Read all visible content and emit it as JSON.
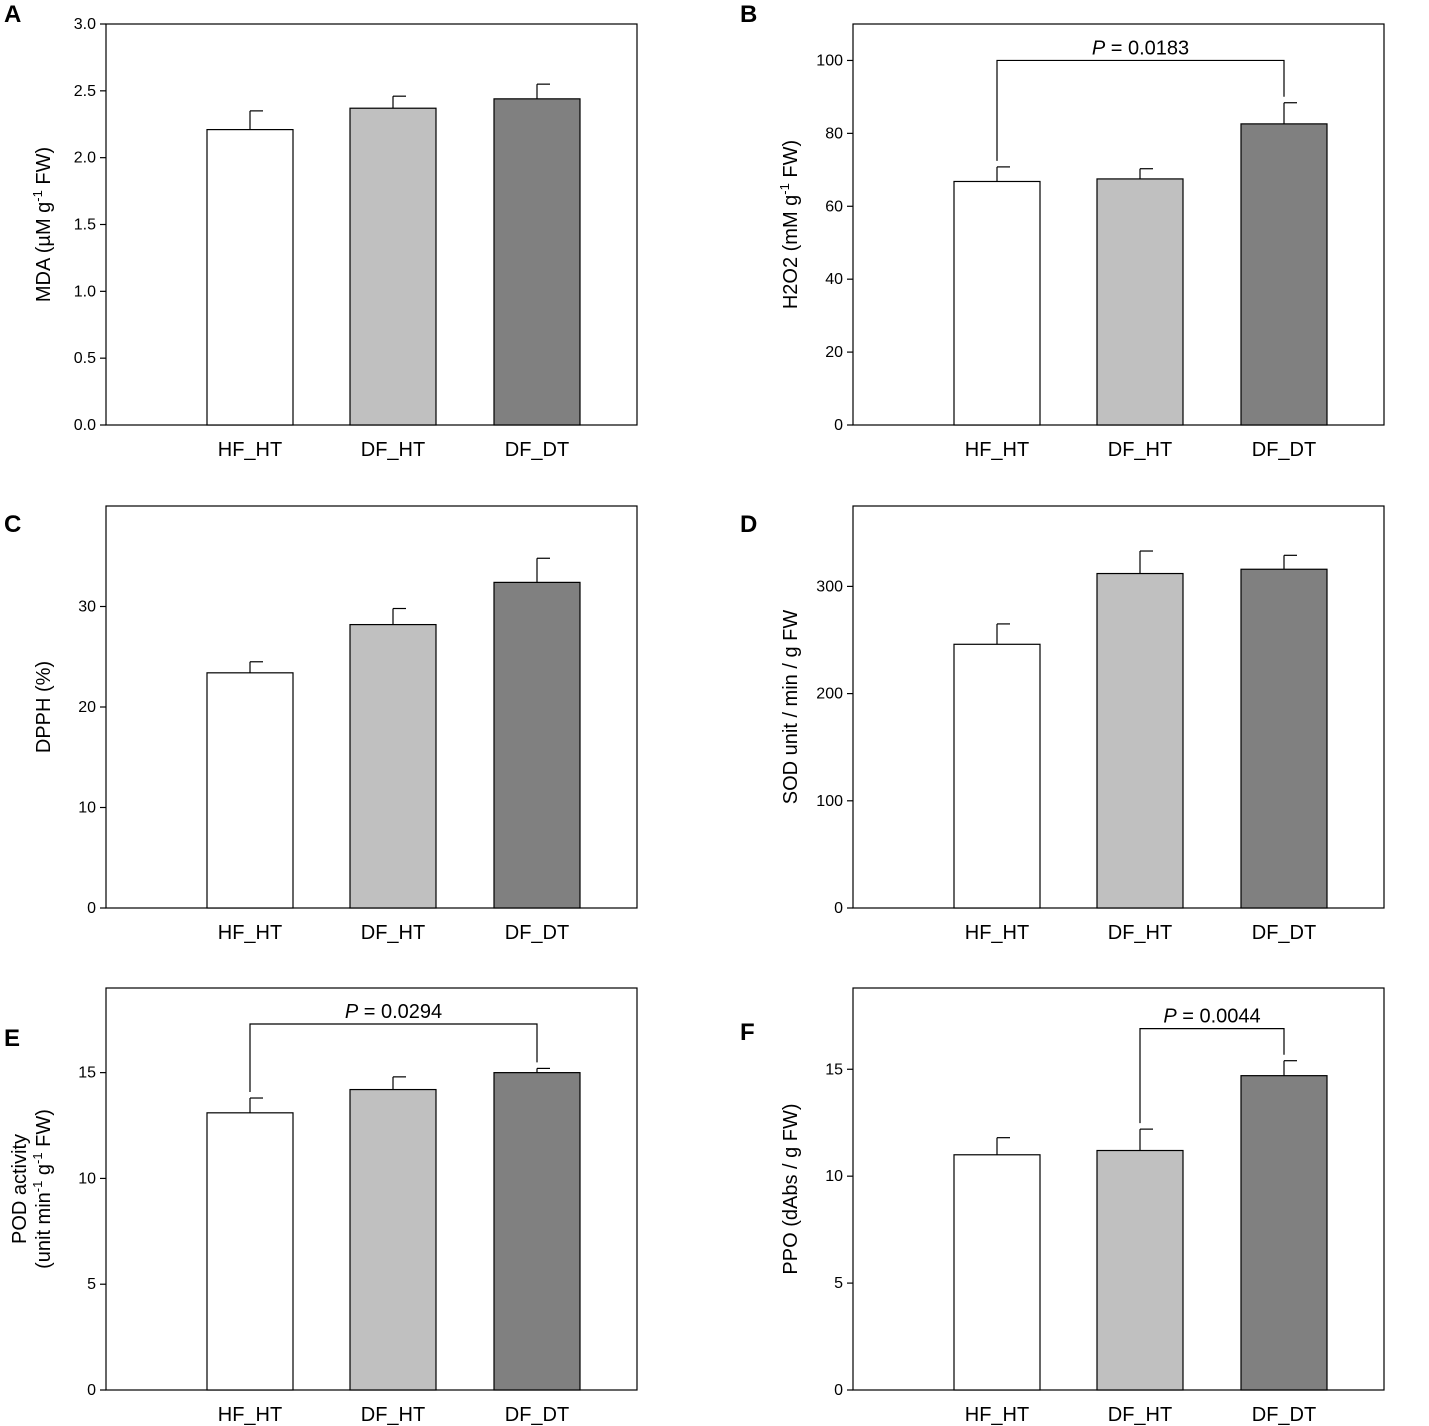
{
  "figure": {
    "colors": {
      "HF_HT": "#ffffff",
      "DF_HT": "#c0c0c0",
      "DF_DT": "#808080",
      "stroke": "#000000"
    }
  },
  "chart_data": [
    {
      "type": "bar",
      "panel": "A",
      "categories": [
        "HF_HT",
        "DF_HT",
        "DF_DT"
      ],
      "values": [
        2.21,
        2.37,
        2.44
      ],
      "errors": [
        0.14,
        0.09,
        0.11
      ],
      "ylabel": "MDA (µM g",
      "ylabel_sup": "-1",
      "ylabel_tail": " FW)",
      "ylim": [
        0,
        3.0
      ],
      "yticks": [
        "0.0",
        "0.5",
        "1.0",
        "1.5",
        "2.0",
        "2.5",
        "3.0"
      ],
      "annotations": []
    },
    {
      "type": "bar",
      "panel": "B",
      "categories": [
        "HF_HT",
        "DF_HT",
        "DF_DT"
      ],
      "values": [
        66.8,
        67.5,
        82.6
      ],
      "errors": [
        4.0,
        2.8,
        5.8
      ],
      "ylabel": "H2O2 (mM g",
      "ylabel_sup": "-1",
      "ylabel_tail": " FW)",
      "ylim": [
        0,
        110
      ],
      "yticks": [
        "0",
        "20",
        "40",
        "60",
        "80",
        "100"
      ],
      "annotations": [
        {
          "from": 0,
          "to": 2,
          "bracket_y": 100,
          "p_prefix": "P",
          "p_text": " = 0.0183"
        }
      ]
    },
    {
      "type": "bar",
      "panel": "C",
      "categories": [
        "HF_HT",
        "DF_HT",
        "DF_DT"
      ],
      "values": [
        23.4,
        28.2,
        32.4
      ],
      "errors": [
        1.1,
        1.6,
        2.4
      ],
      "ylabel": "DPPH (%)",
      "ylabel_sup": "",
      "ylabel_tail": "",
      "ylim": [
        0,
        40
      ],
      "yticks": [
        "0",
        "10",
        "20",
        "30"
      ],
      "annotations": []
    },
    {
      "type": "bar",
      "panel": "D",
      "categories": [
        "HF_HT",
        "DF_HT",
        "DF_DT"
      ],
      "values": [
        246,
        312,
        316
      ],
      "errors": [
        19,
        21,
        13
      ],
      "ylabel": "SOD unit / min / g FW",
      "ylabel_sup": "",
      "ylabel_tail": "",
      "ylim": [
        0,
        375
      ],
      "yticks": [
        "0",
        "100",
        "200",
        "300"
      ],
      "annotations": []
    },
    {
      "type": "bar",
      "panel": "E",
      "categories": [
        "HF_HT",
        "DF_HT",
        "DF_DT"
      ],
      "values": [
        13.1,
        14.2,
        15.0
      ],
      "errors": [
        0.7,
        0.6,
        0.2
      ],
      "ylabel": "POD activity",
      "ylabel2": "(unit min",
      "ylabel2_sup1": "-1",
      "ylabel2_mid": " g",
      "ylabel2_sup2": "-1",
      "ylabel2_tail": " FW)",
      "ylim": [
        0,
        19
      ],
      "yticks": [
        "0",
        "5",
        "10",
        "15"
      ],
      "annotations": [
        {
          "from": 0,
          "to": 2,
          "bracket_y": 17.3,
          "p_prefix": "P",
          "p_text": " = 0.0294"
        }
      ]
    },
    {
      "type": "bar",
      "panel": "F",
      "categories": [
        "HF_HT",
        "DF_HT",
        "DF_DT"
      ],
      "values": [
        11.0,
        11.2,
        14.7
      ],
      "errors": [
        0.8,
        1.0,
        0.7
      ],
      "ylabel": "PPO (dAbs / g FW)",
      "ylabel_sup": "",
      "ylabel_tail": "",
      "ylim": [
        0,
        18.8
      ],
      "yticks": [
        "0",
        "5",
        "10",
        "15"
      ],
      "annotations": [
        {
          "from": 1,
          "to": 2,
          "bracket_y": 16.9,
          "p_prefix": "P",
          "p_text": " = 0.0044"
        }
      ]
    }
  ]
}
